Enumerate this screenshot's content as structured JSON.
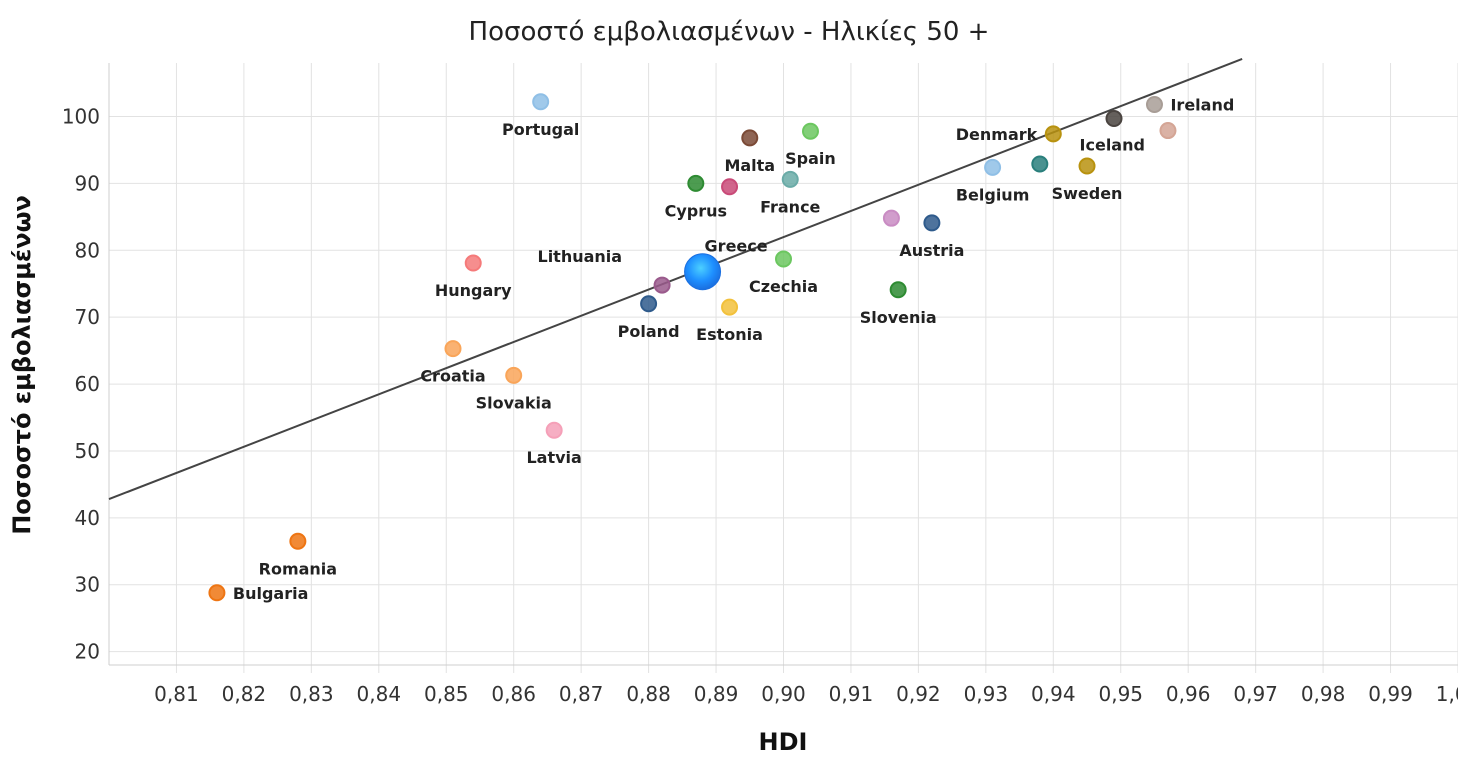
{
  "chart_data": {
    "type": "scatter",
    "title": "Ποσοστό εμβολιασμένων -  Ηλικίες 50 +",
    "xlabel": "HDI",
    "ylabel": "Ποσοστό εμβολιασμένων",
    "xlim": [
      0.8,
      1.0
    ],
    "ylim": [
      18,
      108
    ],
    "x_ticks": [
      0.81,
      0.82,
      0.83,
      0.84,
      0.85,
      0.86,
      0.87,
      0.88,
      0.89,
      0.9,
      0.91,
      0.92,
      0.93,
      0.94,
      0.95,
      0.96,
      0.97,
      0.98,
      0.99,
      1.0
    ],
    "x_tick_labels": [
      "0,81",
      "0,82",
      "0,83",
      "0,84",
      "0,85",
      "0,86",
      "0,87",
      "0,88",
      "0,89",
      "0,90",
      "0,91",
      "0,92",
      "0,93",
      "0,94",
      "0,95",
      "0,96",
      "0,97",
      "0,98",
      "0,99",
      "1,00"
    ],
    "y_ticks": [
      20,
      30,
      40,
      50,
      60,
      70,
      80,
      90,
      100
    ],
    "y_tick_labels": [
      "20",
      "30",
      "40",
      "50",
      "60",
      "70",
      "80",
      "90",
      "100"
    ],
    "grid": true,
    "trendline": {
      "x": [
        0.8,
        0.968
      ],
      "y": [
        42.8,
        108.6
      ],
      "color": "#444444"
    },
    "points": [
      {
        "label": "Portugal",
        "x": 0.864,
        "y": 102.2,
        "color": "#8fbfe6",
        "label_pos": "below"
      },
      {
        "label": "Malta",
        "x": 0.895,
        "y": 96.8,
        "color": "#7b4a36",
        "label_pos": "below"
      },
      {
        "label": "Spain",
        "x": 0.904,
        "y": 97.8,
        "color": "#6cc760",
        "label_pos": "below"
      },
      {
        "label": "Cyprus",
        "x": 0.887,
        "y": 90.0,
        "color": "#2e8b32",
        "label_pos": "below"
      },
      {
        "label": "",
        "x": 0.892,
        "y": 89.5,
        "color": "#c94a78",
        "label_pos": "none"
      },
      {
        "label": "France",
        "x": 0.901,
        "y": 90.6,
        "color": "#6aaba7",
        "label_pos": "below"
      },
      {
        "label": "Denmark",
        "x": 0.94,
        "y": 97.4,
        "color": "#b8920f",
        "label_pos": "left"
      },
      {
        "label": "",
        "x": 0.949,
        "y": 99.7,
        "color": "#4a4440",
        "label_pos": "none"
      },
      {
        "label": "Ireland",
        "x": 0.955,
        "y": 101.8,
        "color": "#a89d96",
        "label_pos": "right"
      },
      {
        "label": "Iceland",
        "x": 0.957,
        "y": 97.9,
        "color": "#d4a595",
        "label_pos": "below-left"
      },
      {
        "label": "Belgium",
        "x": 0.931,
        "y": 92.4,
        "color": "#8fbfe6",
        "label_pos": "below"
      },
      {
        "label": "",
        "x": 0.938,
        "y": 92.9,
        "color": "#2a7f7c",
        "label_pos": "none"
      },
      {
        "label": "Sweden",
        "x": 0.945,
        "y": 92.6,
        "color": "#b8920f",
        "label_pos": "below"
      },
      {
        "label": "",
        "x": 0.916,
        "y": 84.8,
        "color": "#c98cc3",
        "label_pos": "none"
      },
      {
        "label": "Austria",
        "x": 0.922,
        "y": 84.1,
        "color": "#2f5b8c",
        "label_pos": "below"
      },
      {
        "label": "Greece",
        "x": 0.888,
        "y": 76.8,
        "color": "#1e8fff",
        "label_pos": "above-right",
        "highlight": true
      },
      {
        "label": "Lithuania",
        "x": 0.882,
        "y": 74.8,
        "color": "#9a5a8c",
        "label_pos": "above-left"
      },
      {
        "label": "Czechia",
        "x": 0.9,
        "y": 78.7,
        "color": "#6cc760",
        "label_pos": "below"
      },
      {
        "label": "Slovenia",
        "x": 0.917,
        "y": 74.1,
        "color": "#2e8b32",
        "label_pos": "below"
      },
      {
        "label": "Poland",
        "x": 0.88,
        "y": 72.0,
        "color": "#2f5b8c",
        "label_pos": "below"
      },
      {
        "label": "Estonia",
        "x": 0.892,
        "y": 71.5,
        "color": "#f2c13c",
        "label_pos": "below"
      },
      {
        "label": "Hungary",
        "x": 0.854,
        "y": 78.1,
        "color": "#f57a7a",
        "label_pos": "below"
      },
      {
        "label": "Croatia",
        "x": 0.851,
        "y": 65.3,
        "color": "#f9a559",
        "label_pos": "below"
      },
      {
        "label": "Slovakia",
        "x": 0.86,
        "y": 61.3,
        "color": "#f9a559",
        "label_pos": "below"
      },
      {
        "label": "Latvia",
        "x": 0.866,
        "y": 53.1,
        "color": "#f5a0b8",
        "label_pos": "below"
      },
      {
        "label": "Romania",
        "x": 0.828,
        "y": 36.5,
        "color": "#ee7513",
        "label_pos": "below"
      },
      {
        "label": "Bulgaria",
        "x": 0.816,
        "y": 28.8,
        "color": "#ee7513",
        "label_pos": "right"
      }
    ]
  }
}
